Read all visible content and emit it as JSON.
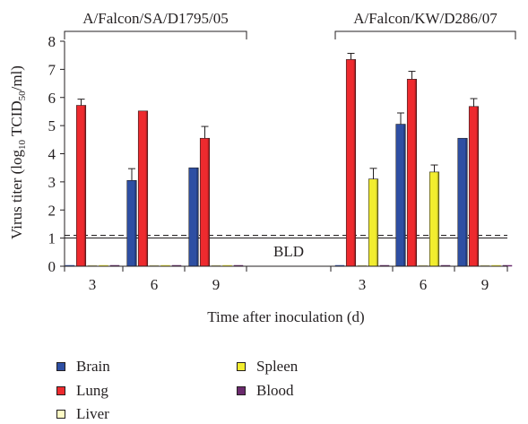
{
  "chart_data": {
    "type": "bar",
    "ylabel_main": "Virus titer (log",
    "ylabel_sub": "10",
    "ylabel_mid": " TCID",
    "ylabel_sub2": "50",
    "ylabel_end": "/ml)",
    "xlabel": "Time after inoculation (d)",
    "ylim": [
      0,
      8
    ],
    "yticks": [
      "0",
      "1",
      "2",
      "3",
      "4",
      "5",
      "6",
      "7",
      "8"
    ],
    "detection_limit": 1.05,
    "bld_label": "BLD",
    "groups": [
      {
        "label": "A/Falcon/SA/D1795/05",
        "categories": [
          "3",
          "6",
          "9"
        ]
      },
      {
        "label": "A/Falcon/KW/D286/07",
        "categories": [
          "3",
          "6",
          "9"
        ]
      }
    ],
    "series": [
      {
        "name": "Brain",
        "color": "#2e4fa3",
        "values": [
          0,
          3.05,
          3.5,
          0,
          5.05,
          4.55
        ],
        "errors": [
          0,
          0.42,
          0,
          0,
          0.4,
          0
        ]
      },
      {
        "name": "Lung",
        "color": "#ee2a2e",
        "values": [
          5.72,
          5.52,
          4.55,
          7.35,
          6.65,
          5.68
        ],
        "errors": [
          0.22,
          0,
          0.42,
          0.22,
          0.28,
          0.28
        ]
      },
      {
        "name": "Liver",
        "color": "#fefbc5",
        "values": [
          0,
          0,
          0,
          0,
          0,
          0
        ],
        "errors": [
          0,
          0,
          0,
          0,
          0,
          0
        ]
      },
      {
        "name": "Spleen",
        "color": "#f2ed2f",
        "values": [
          0,
          0,
          0,
          3.1,
          3.35,
          0
        ],
        "errors": [
          0,
          0,
          0,
          0.38,
          0.25,
          0
        ]
      },
      {
        "name": "Blood",
        "color": "#6b2a6e",
        "values": [
          0,
          0,
          0,
          0,
          0,
          0
        ],
        "errors": [
          0,
          0,
          0,
          0,
          0,
          0
        ]
      }
    ]
  }
}
